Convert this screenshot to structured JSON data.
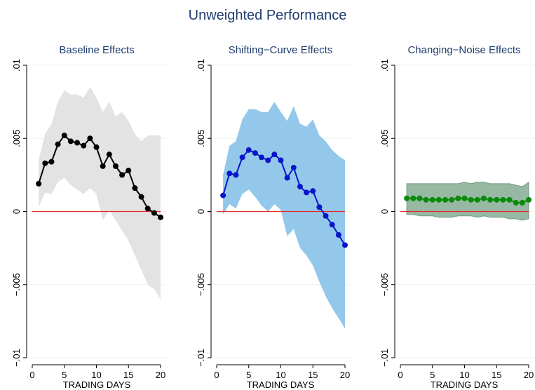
{
  "figure": {
    "title": "Unweighted Performance",
    "title_color": "#1f3c6e"
  },
  "chart_data": [
    {
      "type": "line",
      "title": "Baseline Effects",
      "xlabel": "TRADING DAYS",
      "ylabel": "",
      "xlim": [
        0,
        20
      ],
      "ylim": [
        -0.01,
        0.01
      ],
      "xticks": [
        "0",
        "5",
        "10",
        "15",
        "20"
      ],
      "yticks": [
        "−.01",
        "−.005",
        "0",
        ".005",
        ".01"
      ],
      "grid": true,
      "reference_line": 0,
      "colors": {
        "line": "#000000",
        "band": "#e3e3e3",
        "reference": "#e32a2a"
      },
      "series": [
        {
          "x": [
            1,
            2,
            3,
            4,
            5,
            6,
            7,
            8,
            9,
            10,
            11,
            12,
            13,
            14,
            15,
            16,
            17,
            18,
            19,
            20
          ],
          "values": [
            0.0019,
            0.0033,
            0.0034,
            0.0046,
            0.0052,
            0.0048,
            0.0047,
            0.0045,
            0.005,
            0.0044,
            0.0031,
            0.0039,
            0.0031,
            0.0025,
            0.0028,
            0.0016,
            0.001,
            0.0002,
            -0.0001,
            -0.0004
          ],
          "lower": [
            0.0003,
            0.0013,
            0.0012,
            0.002,
            0.0023,
            0.0018,
            0.0015,
            0.0012,
            0.0016,
            0.0012,
            -0.0006,
            0.0001,
            -0.0006,
            -0.0013,
            -0.002,
            -0.003,
            -0.004,
            -0.005,
            -0.0053,
            -0.006
          ],
          "upper": [
            0.0035,
            0.0053,
            0.006,
            0.0075,
            0.0083,
            0.008,
            0.008,
            0.0078,
            0.0085,
            0.0078,
            0.0068,
            0.0075,
            0.0065,
            0.0068,
            0.0062,
            0.0053,
            0.0048,
            0.0052,
            0.0052,
            0.0052
          ]
        }
      ]
    },
    {
      "type": "line",
      "title": "Shifting−Curve Effects",
      "xlabel": "TRADING DAYS",
      "ylabel": "",
      "xlim": [
        0,
        20
      ],
      "ylim": [
        -0.01,
        0.01
      ],
      "xticks": [
        "0",
        "5",
        "10",
        "15",
        "20"
      ],
      "yticks": [
        "−.01",
        "−.005",
        "0",
        ".005",
        ".01"
      ],
      "grid": true,
      "reference_line": 0,
      "colors": {
        "line": "#0a15c9",
        "band": "#93c8ea",
        "reference": "#e32a2a"
      },
      "series": [
        {
          "x": [
            1,
            2,
            3,
            4,
            5,
            6,
            7,
            8,
            9,
            10,
            11,
            12,
            13,
            14,
            15,
            16,
            17,
            18,
            19,
            20
          ],
          "values": [
            0.0011,
            0.0026,
            0.0025,
            0.0037,
            0.0042,
            0.004,
            0.0037,
            0.0035,
            0.0039,
            0.0035,
            0.0023,
            0.003,
            0.0017,
            0.0013,
            0.0014,
            0.0003,
            -0.0003,
            -0.0009,
            -0.0016,
            -0.0023
          ],
          "lower": [
            -0.0002,
            0.0005,
            0.0002,
            0.0012,
            0.0015,
            0.001,
            0.0004,
            0.0,
            0.0005,
            0.0001,
            -0.0017,
            -0.0012,
            -0.0025,
            -0.003,
            -0.0037,
            -0.0048,
            -0.0058,
            -0.0066,
            -0.0073,
            -0.008
          ],
          "upper": [
            0.0025,
            0.0045,
            0.0048,
            0.0063,
            0.007,
            0.007,
            0.0068,
            0.0068,
            0.0075,
            0.0068,
            0.0062,
            0.0072,
            0.006,
            0.0058,
            0.0063,
            0.0052,
            0.0048,
            0.0042,
            0.0038,
            0.0035
          ]
        }
      ]
    },
    {
      "type": "line",
      "title": "Changing−Noise Effects",
      "xlabel": "TRADING DAYS",
      "ylabel": "",
      "xlim": [
        0,
        20
      ],
      "ylim": [
        -0.01,
        0.01
      ],
      "xticks": [
        "0",
        "5",
        "10",
        "15",
        "20"
      ],
      "yticks": [
        "−.01",
        "−.005",
        "0",
        ".005",
        ".01"
      ],
      "grid": true,
      "reference_line": 0,
      "colors": {
        "line": "#0a8a0a",
        "band": "#97b8a3",
        "band_edge": "#6f9a80",
        "reference": "#e32a2a"
      },
      "series": [
        {
          "x": [
            1,
            2,
            3,
            4,
            5,
            6,
            7,
            8,
            9,
            10,
            11,
            12,
            13,
            14,
            15,
            16,
            17,
            18,
            19,
            20
          ],
          "values": [
            0.0009,
            0.0009,
            0.0009,
            0.0008,
            0.0008,
            0.0008,
            0.0008,
            0.0008,
            0.0009,
            0.0009,
            0.0008,
            0.0008,
            0.0009,
            0.0008,
            0.0008,
            0.0008,
            0.0008,
            0.0006,
            0.0006,
            0.0008
          ],
          "lower": [
            -0.0002,
            -0.0002,
            -0.0003,
            -0.0003,
            -0.0003,
            -0.0004,
            -0.0004,
            -0.0004,
            -0.0003,
            -0.0003,
            -0.0003,
            -0.0004,
            -0.0003,
            -0.0004,
            -0.0004,
            -0.0004,
            -0.0005,
            -0.0005,
            -0.0006,
            -0.0005
          ],
          "upper": [
            0.0019,
            0.0019,
            0.0019,
            0.0019,
            0.0019,
            0.0019,
            0.0019,
            0.0019,
            0.0019,
            0.002,
            0.0019,
            0.002,
            0.002,
            0.0019,
            0.0019,
            0.0019,
            0.0019,
            0.0018,
            0.0017,
            0.002
          ]
        }
      ]
    }
  ]
}
